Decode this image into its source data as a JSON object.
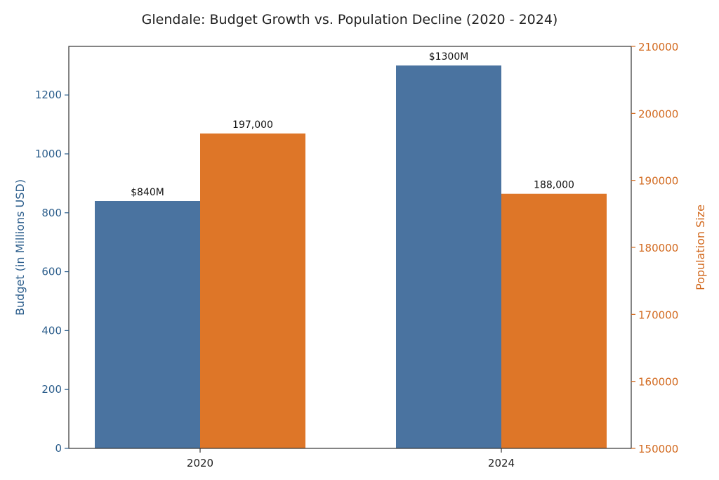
{
  "chart_data": {
    "type": "bar",
    "title": "Glendale: Budget Growth vs. Population Decline (2020 - 2024)",
    "categories": [
      "2020",
      "2024"
    ],
    "series": [
      {
        "metric": "budget",
        "axis": "left",
        "color": "#4a73a0",
        "values": [
          840,
          1300
        ],
        "labels": [
          "$840M",
          "$1300M"
        ]
      },
      {
        "metric": "population",
        "axis": "right",
        "color": "#de7628",
        "values": [
          197000,
          188000
        ],
        "labels": [
          "197,000",
          "188,000"
        ]
      }
    ],
    "left_axis": {
      "label": "Budget (in Millions USD)",
      "color": "#2c5e8c",
      "ylim": [
        0,
        1365
      ],
      "ticks": [
        0,
        200,
        400,
        600,
        800,
        1000,
        1200
      ]
    },
    "right_axis": {
      "label": "Population Size",
      "color": "#d2691e",
      "ylim": [
        150000,
        210000
      ],
      "ticks": [
        150000,
        160000,
        170000,
        180000,
        190000,
        200000,
        210000
      ]
    },
    "grid": false,
    "legend": "none"
  }
}
